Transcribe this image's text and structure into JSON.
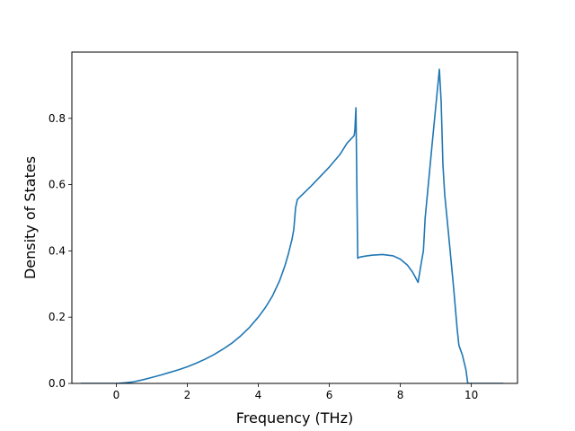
{
  "chart_data": {
    "type": "line",
    "title": "",
    "xlabel": "Frequency (THz)",
    "ylabel": "Density of States",
    "xlim": [
      -1.25,
      11.3
    ],
    "ylim": [
      0,
      1.0
    ],
    "xticks": [
      0,
      2,
      4,
      6,
      8,
      10
    ],
    "yticks": [
      0.0,
      0.2,
      0.4,
      0.6,
      0.8
    ],
    "ytick_labels": [
      "0.0",
      "0.2",
      "0.4",
      "0.6",
      "0.8"
    ],
    "grid": false,
    "legend": "none",
    "line_color": "#1f77b4",
    "series": [
      {
        "x": [
          -1.0,
          -0.5,
          0.0,
          0.25,
          0.5,
          0.75,
          1.0,
          1.25,
          1.5,
          1.75,
          2.0,
          2.25,
          2.5,
          2.75,
          3.0,
          3.25,
          3.5,
          3.75,
          4.0,
          4.2,
          4.4,
          4.6,
          4.75,
          4.85,
          4.95,
          5.0,
          5.05,
          5.1,
          5.5,
          6.0,
          6.3,
          6.5,
          6.7,
          6.72,
          6.75,
          6.8,
          6.85,
          7.0,
          7.2,
          7.5,
          7.8,
          8.0,
          8.2,
          8.35,
          8.45,
          8.5,
          8.6,
          8.65,
          8.7,
          8.9,
          9.1,
          9.15,
          9.2,
          9.25,
          9.35,
          9.5,
          9.6,
          9.65,
          9.75,
          9.85,
          9.9,
          10.0,
          10.5,
          10.9
        ],
        "y": [
          0.0,
          0.0,
          0.0,
          0.002,
          0.005,
          0.011,
          0.018,
          0.025,
          0.033,
          0.041,
          0.05,
          0.061,
          0.073,
          0.087,
          0.103,
          0.121,
          0.143,
          0.169,
          0.2,
          0.229,
          0.264,
          0.31,
          0.355,
          0.392,
          0.435,
          0.465,
          0.53,
          0.555,
          0.597,
          0.653,
          0.691,
          0.725,
          0.748,
          0.765,
          0.832,
          0.378,
          0.381,
          0.384,
          0.387,
          0.389,
          0.385,
          0.375,
          0.357,
          0.335,
          0.315,
          0.305,
          0.37,
          0.4,
          0.5,
          0.727,
          0.948,
          0.85,
          0.66,
          0.57,
          0.46,
          0.29,
          0.165,
          0.115,
          0.085,
          0.04,
          0.0,
          0.0,
          0.0,
          0.0
        ]
      }
    ]
  }
}
